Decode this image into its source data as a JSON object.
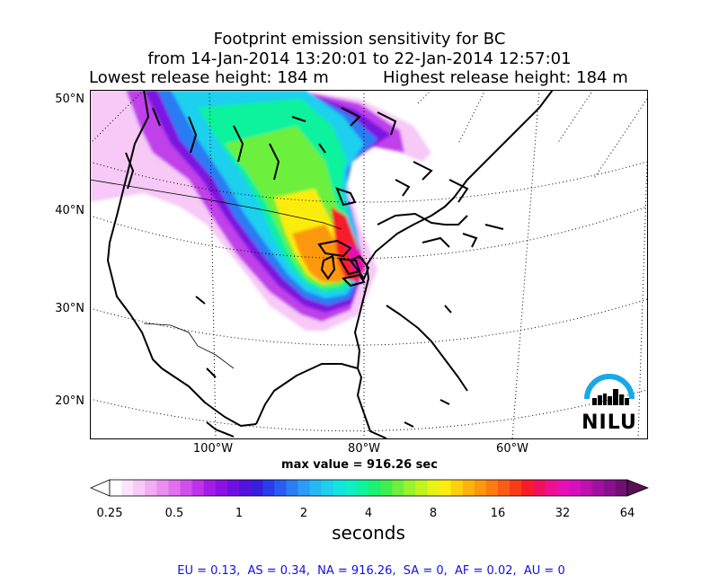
{
  "figure": {
    "title_line1": "Footprint emission sensitivity for BC",
    "title_line2": "from 14-Jan-2014 13:20:01 to 22-Jan-2014 12:57:01",
    "lowest_release": "Lowest release height: 184 m",
    "highest_release": "Highest release height: 184 m",
    "max_value": "max value = 916.26 sec",
    "units": "seconds",
    "stats": "EU = 0.13,  AS = 0.34,  NA = 916.26,  SA = 0,  AF = 0.02,  AU = 0"
  },
  "map": {
    "lat_labels": [
      "50°N",
      "40°N",
      "30°N",
      "20°N"
    ],
    "lon_labels": [
      "100°W",
      "80°W",
      "60°W"
    ],
    "logo_text": "NILU"
  },
  "colorbar": {
    "ticks": [
      "0.25",
      "0.5",
      "1",
      "2",
      "4",
      "8",
      "16",
      "32",
      "64"
    ],
    "colors": [
      "#ffffff",
      "#fbe4fb",
      "#f6c9f6",
      "#f0aef2",
      "#ea8ff0",
      "#e070ee",
      "#d04fec",
      "#bc33ea",
      "#a41be6",
      "#8c11e4",
      "#7010e0",
      "#5512dc",
      "#3a1ee0",
      "#2a3cec",
      "#2a5cf2",
      "#2c7cf4",
      "#2c9cf6",
      "#26b8f4",
      "#1ed0ee",
      "#14e4e0",
      "#10eec4",
      "#10f29c",
      "#1af274",
      "#3cf050",
      "#6cf03c",
      "#98f42c",
      "#c0f420",
      "#e4f418",
      "#fcec10",
      "#fcd00c",
      "#fcb40c",
      "#fc980c",
      "#fc7c10",
      "#fc5c14",
      "#f83c18",
      "#f61c2c",
      "#f2105c",
      "#ee1090",
      "#e810b4",
      "#d810bc",
      "#c010b0",
      "#a010a0",
      "#88108c",
      "#701070"
    ],
    "under_color": "#ffffff",
    "over_color": "#581058"
  }
}
